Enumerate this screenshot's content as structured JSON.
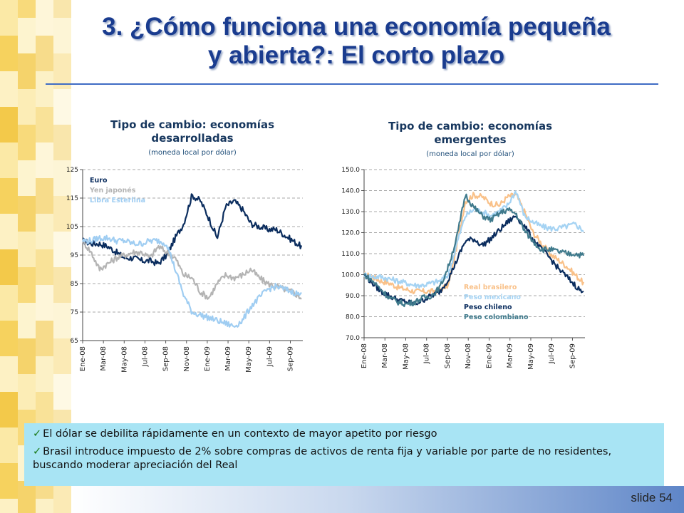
{
  "slide": {
    "title_line1": "3. ¿Cómo funciona una economía pequeña",
    "title_line2": "y abierta?: El corto plazo",
    "slide_number": "slide 54",
    "accent_color": "#1a3c8f"
  },
  "notes": [
    "El dólar se debilita rápidamente en un contexto de mayor apetito por riesgo",
    "Brasil introduce impuesto de 2% sobre compras de activos de renta fija y variable por parte de no residentes, buscando moderar apreciación del Real"
  ],
  "chart_data": [
    {
      "type": "line",
      "title_line1": "Tipo de cambio: economías",
      "title_line2": "desarrolladas",
      "subtitle": "(moneda local por dólar)",
      "ylim": [
        65,
        125
      ],
      "yticks": [
        "65",
        "75",
        "85",
        "95",
        "105",
        "115",
        "125"
      ],
      "xticks": [
        "Ene-08",
        "Mar-08",
        "May-08",
        "Jul-08",
        "Sep-08",
        "Nov-08",
        "Ene-09",
        "Mar-09",
        "May-09",
        "Jul-09",
        "Sep-09"
      ],
      "grid": true,
      "legend_position": "top-left",
      "series": [
        {
          "name": "Euro",
          "color": "#0b2d5e",
          "values": [
            100,
            99,
            99,
            98,
            96,
            94,
            94,
            93,
            93,
            92,
            95,
            101,
            106,
            116,
            114,
            108,
            101,
            112,
            114,
            111,
            106,
            105,
            104,
            104,
            102,
            100,
            98
          ]
        },
        {
          "name": "Yen japonés",
          "color": "#b4b4b4",
          "values": [
            100,
            96,
            90,
            92,
            94,
            95,
            96,
            96,
            94,
            98,
            96,
            94,
            88,
            87,
            82,
            80,
            85,
            88,
            87,
            88,
            90,
            87,
            85,
            84,
            83,
            82,
            80
          ]
        },
        {
          "name": "Libra Esterlina",
          "color": "#9fcdf2",
          "values": [
            100,
            100,
            101,
            101,
            100,
            100,
            99,
            99,
            100,
            100,
            99,
            90,
            81,
            75,
            74,
            73,
            72,
            71,
            70,
            72,
            77,
            80,
            83,
            84,
            83,
            82,
            81
          ]
        }
      ]
    },
    {
      "type": "line",
      "title_line1": "Tipo de cambio: economías",
      "title_line2": "emergentes",
      "subtitle": "(moneda local por dólar)",
      "ylim": [
        70,
        150
      ],
      "yticks": [
        "70.0",
        "80.0",
        "90.0",
        "100.0",
        "110.0",
        "120.0",
        "130.0",
        "140.0",
        "150.0"
      ],
      "xticks": [
        "Ene-08",
        "Mar-08",
        "May-08",
        "Jul-08",
        "Sep-08",
        "Nov-08",
        "Ene-09",
        "Mar-09",
        "May-09",
        "Jul-09",
        "Sep-09"
      ],
      "grid": true,
      "legend_position": "bottom-right",
      "series": [
        {
          "name": "Real brasilero",
          "color": "#f9c189",
          "values": [
            100,
            99,
            97,
            96,
            94,
            93,
            92,
            92,
            92,
            93,
            95,
            114,
            135,
            138,
            137,
            134,
            133,
            137,
            138,
            130,
            120,
            115,
            110,
            107,
            104,
            100,
            96
          ]
        },
        {
          "name": "Peso mexicano",
          "color": "#a5d3f3",
          "values": [
            100,
            99,
            99,
            98,
            97,
            96,
            95,
            95,
            96,
            97,
            100,
            115,
            128,
            131,
            130,
            128,
            130,
            133,
            140,
            128,
            125,
            123,
            122,
            122,
            123,
            124,
            121
          ]
        },
        {
          "name": "Peso chileno",
          "color": "#0b2d5e",
          "values": [
            100,
            96,
            92,
            90,
            88,
            87,
            86,
            88,
            90,
            92,
            98,
            107,
            116,
            117,
            114,
            117,
            121,
            125,
            128,
            123,
            117,
            112,
            108,
            103,
            99,
            95,
            91
          ]
        },
        {
          "name": "Peso colombiano",
          "color": "#3f7a8c",
          "values": [
            100,
            97,
            93,
            89,
            87,
            86,
            87,
            89,
            90,
            94,
            104,
            118,
            138,
            132,
            128,
            126,
            129,
            131,
            129,
            121,
            116,
            112,
            112,
            111,
            110,
            110,
            109
          ]
        }
      ]
    }
  ]
}
